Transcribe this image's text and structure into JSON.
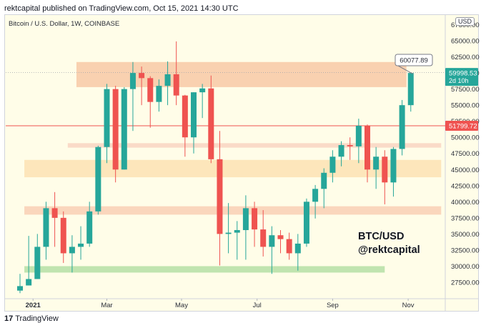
{
  "header": {
    "text": "rektcapital published on TradingView.com, Oct 15, 2021 14:30 UTC"
  },
  "symbol": {
    "text": "Bitcoin / U.S. Dollar, 1W, COINBASE"
  },
  "currency_badge": "USD",
  "overlay": {
    "line1": "BTC/USD",
    "line2": "@rektcapital"
  },
  "footer": {
    "logo": "17",
    "brand": "TradingView"
  },
  "price_labels": {
    "last": {
      "price": "59998.53",
      "sub": "2d 10h",
      "color": "#26a69a"
    },
    "hline": {
      "price": "51799.72",
      "color": "#ef5350"
    },
    "callout": "60077.89"
  },
  "colors": {
    "up": "#26a69a",
    "down": "#ef5350",
    "resistance_zone": "#f8c9a6",
    "support_zone": "#fde2b3",
    "green_zone": "#b5dfa5",
    "horizontal_line": "#ef5350",
    "background": "#fffde8"
  },
  "chart_data": {
    "type": "candlestick",
    "symbol": "Bitcoin / U.S. Dollar",
    "interval": "1W",
    "exchange": "COINBASE",
    "y_axis_ticks": [
      "67500.00",
      "65000.00",
      "62500.00",
      "60000.00",
      "57500.00",
      "55000.00",
      "52500.00",
      "50000.00",
      "47500.00",
      "45000.00",
      "42500.00",
      "40000.00",
      "37500.00",
      "35000.00",
      "32500.00",
      "30000.00",
      "27500.00"
    ],
    "y_axis_label_values": [
      67500,
      65000,
      62500,
      60000,
      57500,
      55000,
      52500,
      50000,
      47500,
      45000,
      42500,
      40000,
      37500,
      35000,
      32500,
      30000,
      27500
    ],
    "ylim": [
      25500,
      69000
    ],
    "x_axis_labels": [
      {
        "label": "2021",
        "index": 1.5,
        "bold": true
      },
      {
        "label": "Mar",
        "index": 10
      },
      {
        "label": "May",
        "index": 18.6
      },
      {
        "label": "Jul",
        "index": 27.3
      },
      {
        "label": "Sep",
        "index": 36
      },
      {
        "label": "Nov",
        "index": 44.7
      }
    ],
    "candles": [
      {
        "o": 26200,
        "h": 28800,
        "l": 25800,
        "c": 26900
      },
      {
        "o": 27000,
        "h": 34700,
        "l": 27000,
        "c": 28000
      },
      {
        "o": 28000,
        "h": 35000,
        "l": 28000,
        "c": 33000
      },
      {
        "o": 33000,
        "h": 40000,
        "l": 31000,
        "c": 39000
      },
      {
        "o": 39000,
        "h": 41500,
        "l": 33000,
        "c": 37500
      },
      {
        "o": 37500,
        "h": 38500,
        "l": 30500,
        "c": 32000
      },
      {
        "o": 32000,
        "h": 34800,
        "l": 29000,
        "c": 33000
      },
      {
        "o": 33000,
        "h": 36200,
        "l": 31000,
        "c": 33500
      },
      {
        "o": 33500,
        "h": 40000,
        "l": 33000,
        "c": 38500
      },
      {
        "o": 38500,
        "h": 48700,
        "l": 38000,
        "c": 48500
      },
      {
        "o": 48500,
        "h": 58300,
        "l": 46000,
        "c": 57500
      },
      {
        "o": 57500,
        "h": 58000,
        "l": 43000,
        "c": 45000
      },
      {
        "o": 45000,
        "h": 57800,
        "l": 45000,
        "c": 57500
      },
      {
        "o": 57500,
        "h": 61700,
        "l": 51000,
        "c": 60000
      },
      {
        "o": 60000,
        "h": 61000,
        "l": 55000,
        "c": 59200
      },
      {
        "o": 59200,
        "h": 59500,
        "l": 51500,
        "c": 55500
      },
      {
        "o": 55500,
        "h": 59000,
        "l": 54000,
        "c": 58000
      },
      {
        "o": 58000,
        "h": 61800,
        "l": 55000,
        "c": 59800
      },
      {
        "o": 59800,
        "h": 64900,
        "l": 55000,
        "c": 56500
      },
      {
        "o": 56500,
        "h": 56600,
        "l": 47000,
        "c": 50000
      },
      {
        "o": 50000,
        "h": 57000,
        "l": 47500,
        "c": 57000
      },
      {
        "o": 57000,
        "h": 58300,
        "l": 53000,
        "c": 57600
      },
      {
        "o": 57600,
        "h": 59600,
        "l": 46000,
        "c": 46600
      },
      {
        "o": 46600,
        "h": 51000,
        "l": 30100,
        "c": 35000
      },
      {
        "o": 35000,
        "h": 39800,
        "l": 32000,
        "c": 35200
      },
      {
        "o": 35200,
        "h": 37000,
        "l": 31000,
        "c": 35600
      },
      {
        "o": 35600,
        "h": 41000,
        "l": 31000,
        "c": 39000
      },
      {
        "o": 39000,
        "h": 40000,
        "l": 33000,
        "c": 35700
      },
      {
        "o": 35700,
        "h": 38700,
        "l": 31500,
        "c": 33000
      },
      {
        "o": 33000,
        "h": 36200,
        "l": 28800,
        "c": 34800
      },
      {
        "o": 34800,
        "h": 35600,
        "l": 32000,
        "c": 34200
      },
      {
        "o": 34200,
        "h": 35200,
        "l": 31000,
        "c": 32000
      },
      {
        "o": 32000,
        "h": 35000,
        "l": 29300,
        "c": 33500
      },
      {
        "o": 33500,
        "h": 40500,
        "l": 33000,
        "c": 40000
      },
      {
        "o": 40000,
        "h": 42600,
        "l": 37400,
        "c": 42000
      },
      {
        "o": 42000,
        "h": 45200,
        "l": 39000,
        "c": 44500
      },
      {
        "o": 44500,
        "h": 48000,
        "l": 43000,
        "c": 47000
      },
      {
        "o": 47000,
        "h": 49400,
        "l": 45500,
        "c": 48800
      },
      {
        "o": 48800,
        "h": 50000,
        "l": 46500,
        "c": 48600
      },
      {
        "o": 48600,
        "h": 52900,
        "l": 46000,
        "c": 51800
      },
      {
        "o": 51800,
        "h": 52000,
        "l": 43000,
        "c": 45000
      },
      {
        "o": 45000,
        "h": 48500,
        "l": 42000,
        "c": 47000
      },
      {
        "o": 47000,
        "h": 48000,
        "l": 39600,
        "c": 43000
      },
      {
        "o": 43000,
        "h": 48500,
        "l": 40800,
        "c": 48200
      },
      {
        "o": 48200,
        "h": 55800,
        "l": 47200,
        "c": 55000
      },
      {
        "o": 55000,
        "h": 60077.89,
        "l": 54000,
        "c": 59998.53
      }
    ],
    "zones": [
      {
        "name": "resistance",
        "x_start": 6.5,
        "x_end": 44.5,
        "y_low": 57800,
        "y_high": 61700,
        "color": "#f8c9a6"
      },
      {
        "name": "band-49k",
        "x_start": 5.5,
        "x_end": 48.5,
        "y_low": 48400,
        "y_high": 49100,
        "color": "#f9d5c2"
      },
      {
        "name": "support-45k",
        "x_start": 0.5,
        "x_end": 48.5,
        "y_low": 43800,
        "y_high": 46500,
        "color": "#fde2b3"
      },
      {
        "name": "support-38k",
        "x_start": 0.5,
        "x_end": 48.5,
        "y_low": 38000,
        "y_high": 39300,
        "color": "#f9cfb4"
      },
      {
        "name": "green-30k",
        "x_start": 0.5,
        "x_end": 42.0,
        "y_low": 29000,
        "y_high": 30000,
        "color": "#b5dfa5"
      }
    ],
    "horizontal_line": 51799.72,
    "dotted_line": 60077.89,
    "last_price": 59998.53,
    "callout_value": 60077.89
  }
}
